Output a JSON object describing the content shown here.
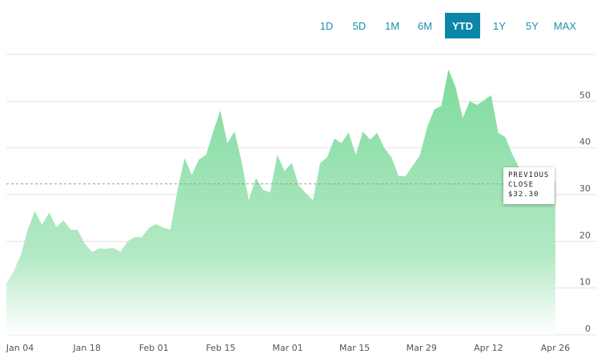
{
  "range_selector": {
    "options": [
      "1D",
      "5D",
      "1M",
      "6M",
      "YTD",
      "1Y",
      "5Y",
      "MAX"
    ],
    "selected": "YTD"
  },
  "previous_close": {
    "line1": "PREVIOUS",
    "line2": "CLOSE",
    "value_text": "$32.30",
    "value": 32.3
  },
  "colors": {
    "area_top": "#7ddb9c",
    "area_bottom": "#ffffff",
    "accent": "#0b86a8"
  },
  "chart_data": {
    "type": "area",
    "title": "",
    "xlabel": "",
    "ylabel": "",
    "x_ticks": [
      "Jan 04",
      "Jan 18",
      "Feb 01",
      "Feb 15",
      "Mar 01",
      "Mar 15",
      "Mar 29",
      "Apr 12",
      "Apr 26"
    ],
    "y_ticks": [
      0,
      10,
      20,
      30,
      40,
      50
    ],
    "ylim": [
      0,
      60
    ],
    "grid": true,
    "reference_line": 32.3,
    "series": [
      {
        "values": [
          11.0,
          13.5,
          17.0,
          22.5,
          26.5,
          23.5,
          26.2,
          23.0,
          24.5,
          22.5,
          22.4,
          19.5,
          17.7,
          18.5,
          18.4,
          18.6,
          17.8,
          20.0,
          20.9,
          20.9,
          22.9,
          23.7,
          22.9,
          22.5,
          31.0,
          37.8,
          34.2,
          37.5,
          38.5,
          43.5,
          48.0,
          41.0,
          43.5,
          37.0,
          28.8,
          33.6,
          31.0,
          30.5,
          38.5,
          35.0,
          36.8,
          32.0,
          30.3,
          28.8,
          36.7,
          38.0,
          42.0,
          41.0,
          43.3,
          38.5,
          43.5,
          41.8,
          43.2,
          40.0,
          38.0,
          34.0,
          34.0,
          36.2,
          38.4,
          44.3,
          48.2,
          49.0,
          56.8,
          53.0,
          46.4,
          50.0,
          49.2,
          50.2,
          51.3,
          43.2,
          42.3,
          38.5,
          35.5,
          32.5,
          31.0,
          30.7,
          31.5,
          32.8
        ]
      }
    ]
  }
}
